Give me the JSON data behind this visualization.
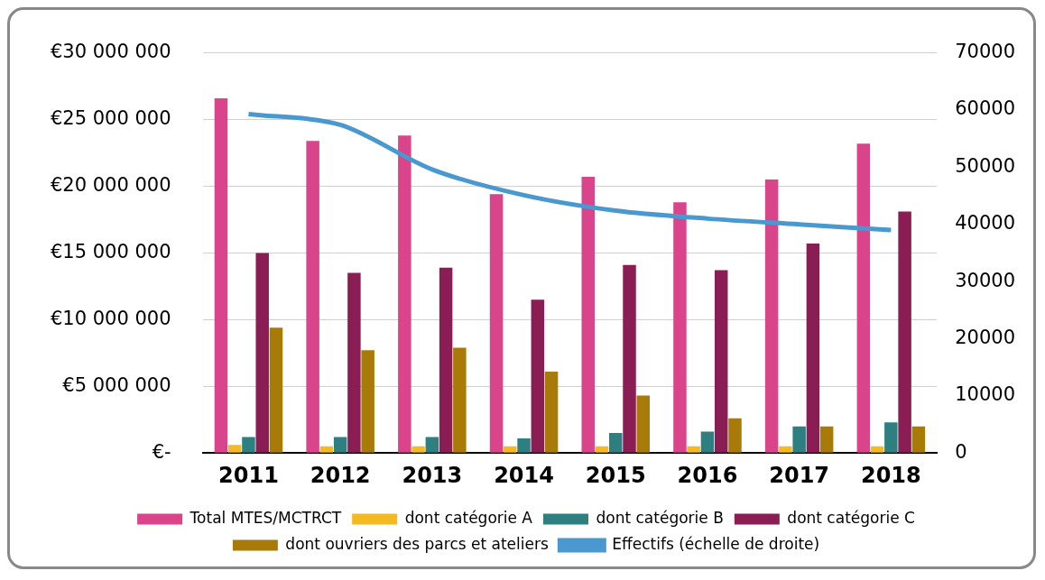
{
  "chart_data": {
    "type": "bar",
    "categories": [
      "2011",
      "2012",
      "2013",
      "2014",
      "2015",
      "2016",
      "2017",
      "2018"
    ],
    "series": [
      {
        "name": "Total MTES/MCTRCT",
        "color": "#d9448b",
        "values": [
          26600000,
          23400000,
          23800000,
          19400000,
          20700000,
          18800000,
          20500000,
          23200000
        ]
      },
      {
        "name": "dont catégorie A",
        "color": "#f5b921",
        "values": [
          600000,
          500000,
          500000,
          500000,
          500000,
          500000,
          500000,
          500000
        ]
      },
      {
        "name": "dont catégorie B",
        "color": "#2e7f80",
        "values": [
          1200000,
          1200000,
          1200000,
          1100000,
          1500000,
          1600000,
          2000000,
          2300000
        ]
      },
      {
        "name": "dont catégorie C",
        "color": "#8b1d55",
        "values": [
          15000000,
          13500000,
          13900000,
          11500000,
          14100000,
          13700000,
          15700000,
          18100000
        ]
      },
      {
        "name": "dont ouvriers des parcs et ateliers",
        "color": "#a87a08",
        "values": [
          9400000,
          7700000,
          7900000,
          6100000,
          4300000,
          2600000,
          2000000,
          2000000
        ]
      },
      {
        "name": "Effectifs (échelle de droite)",
        "type": "line",
        "axis": "y2",
        "color": "#4a98d0",
        "marker": "none",
        "values": [
          59300,
          57400,
          49600,
          45100,
          42400,
          41000,
          40000,
          39000
        ]
      }
    ],
    "ylim": [
      0,
      30000000
    ],
    "yticks": [
      {
        "value": 0,
        "label": "€-"
      },
      {
        "value": 5000000,
        "label": "€5 000 000"
      },
      {
        "value": 10000000,
        "label": "€10 000 000"
      },
      {
        "value": 15000000,
        "label": "€15 000 000"
      },
      {
        "value": 20000000,
        "label": "€20 000 000"
      },
      {
        "value": 25000000,
        "label": "€25 000 000"
      },
      {
        "value": 30000000,
        "label": "€30 000 000"
      }
    ],
    "y2lim": [
      0,
      70000
    ],
    "y2ticks": [
      0,
      10000,
      20000,
      30000,
      40000,
      50000,
      60000,
      70000
    ],
    "grid": "y",
    "legend": "bottom"
  }
}
